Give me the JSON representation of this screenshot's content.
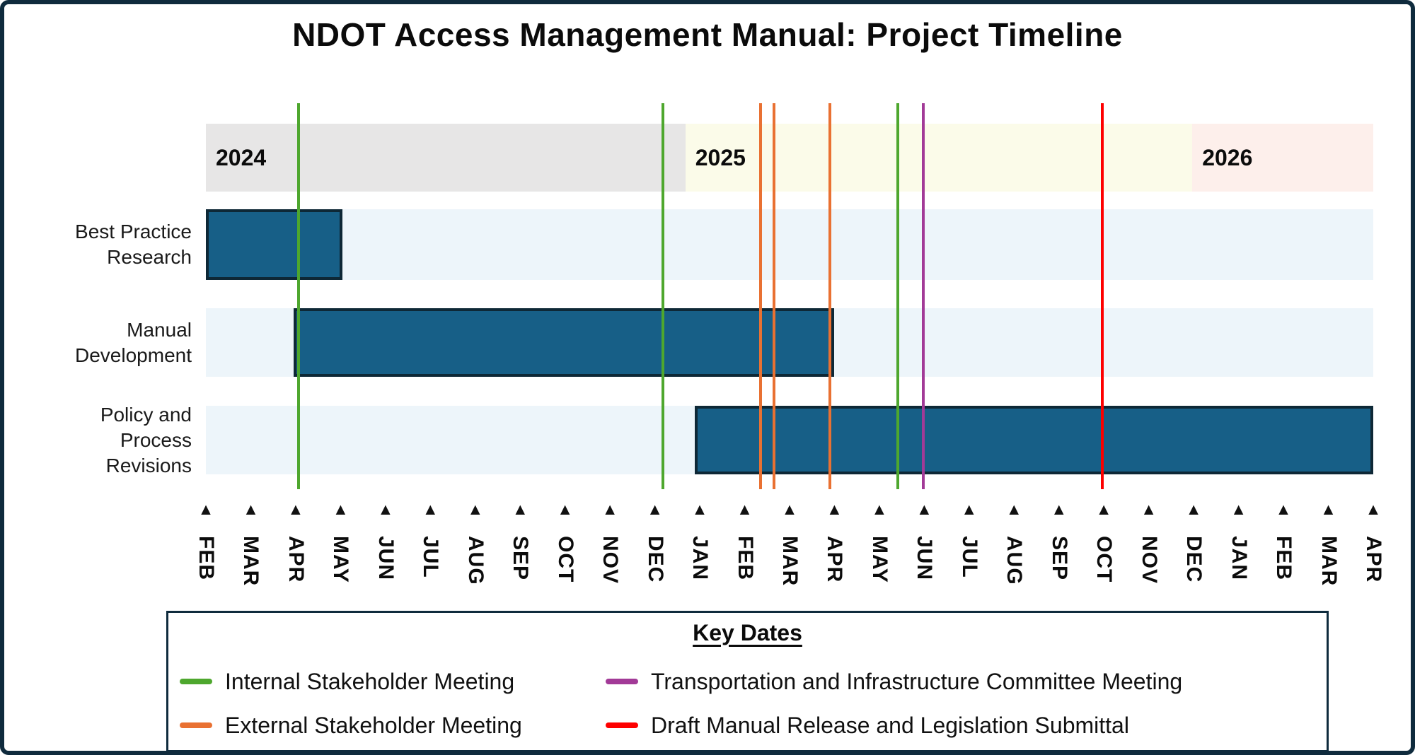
{
  "title": "NDOT Access Management Manual: Project Timeline",
  "legend": {
    "title": "Key Dates",
    "items": [
      {
        "id": "internal",
        "label": "Internal Stakeholder Meeting",
        "color": "#4EA72E"
      },
      {
        "id": "external",
        "label": "External Stakeholder Meeting",
        "color": "#E97132"
      },
      {
        "id": "committee",
        "label": "Transportation and Infrastructure Committee Meeting",
        "color": "#A23A97"
      },
      {
        "id": "draft",
        "label": "Draft Manual Release and Legislation Submittal",
        "color": "#FE0000"
      }
    ]
  },
  "chart_data": {
    "type": "bar",
    "subtype": "gantt-timeline",
    "x_axis": {
      "tick_marker": "▲",
      "months": [
        "FEB",
        "MAR",
        "APR",
        "MAY",
        "JUN",
        "JUL",
        "AUG",
        "SEP",
        "OCT",
        "NOV",
        "DEC",
        "JAN",
        "FEB",
        "MAR",
        "APR",
        "MAY",
        "JUN",
        "JUL",
        "AUG",
        "SEP",
        "OCT",
        "NOV",
        "DEC",
        "JAN",
        "FEB",
        "MAR",
        "APR"
      ],
      "range": "FEB 2024 - APR 2026"
    },
    "years": [
      {
        "label": "2024",
        "color": "#E7E6E6",
        "start_idx": 0,
        "end_idx": 10.68
      },
      {
        "label": "2025",
        "color": "#FBFBE9",
        "start_idx": 10.68,
        "end_idx": 21.97
      },
      {
        "label": "2026",
        "color": "#FDEFEB",
        "start_idx": 21.97,
        "end_idx": 26.0
      }
    ],
    "tasks": [
      {
        "name": "Best Practice Research",
        "label_lines": [
          "Best Practice",
          "Research"
        ],
        "start": "FEB 2024",
        "end": "MAY 2024",
        "start_idx": 0,
        "end_idx": 3.04
      },
      {
        "name": "Manual Development",
        "label_lines": [
          "Manual",
          "Development"
        ],
        "start": "APR 2024",
        "end": "APR 2025",
        "start_idx": 1.95,
        "end_idx": 13.99
      },
      {
        "name": "Policy and Process Revisions",
        "label_lines": [
          "Policy and",
          "Process",
          "Revisions"
        ],
        "start": "JAN 2025",
        "end": "APR 2026",
        "start_idx": 10.89,
        "end_idx": 26.0
      }
    ],
    "events": [
      {
        "type": "Internal Stakeholder Meeting",
        "date": "APR 2024",
        "idx": 2.06,
        "color": "#4EA72E"
      },
      {
        "type": "Internal Stakeholder Meeting",
        "date": "DEC 2024",
        "idx": 10.18,
        "color": "#4EA72E"
      },
      {
        "type": "External Stakeholder Meeting",
        "date": "FEB 2025",
        "idx": 12.35,
        "color": "#E97132"
      },
      {
        "type": "External Stakeholder Meeting",
        "date": "FEB 2025",
        "idx": 12.65,
        "color": "#E97132"
      },
      {
        "type": "External Stakeholder Meeting",
        "date": "APR 2025",
        "idx": 13.9,
        "color": "#E97132"
      },
      {
        "type": "Internal Stakeholder Meeting",
        "date": "MAY 2025",
        "idx": 15.41,
        "color": "#4EA72E"
      },
      {
        "type": "Transportation and Infrastructure Committee Meeting",
        "date": "JUN 2025",
        "idx": 15.98,
        "color": "#A23A97"
      },
      {
        "type": "Draft Manual Release and Legislation Submittal",
        "date": "OCT 2025",
        "idx": 19.96,
        "color": "#FE0000"
      }
    ],
    "styles": {
      "bar_fill": "#175F87",
      "bar_border": "#0E2836",
      "row_bg": "#EDF5FA",
      "frame_border": "#0F2B3D"
    }
  }
}
